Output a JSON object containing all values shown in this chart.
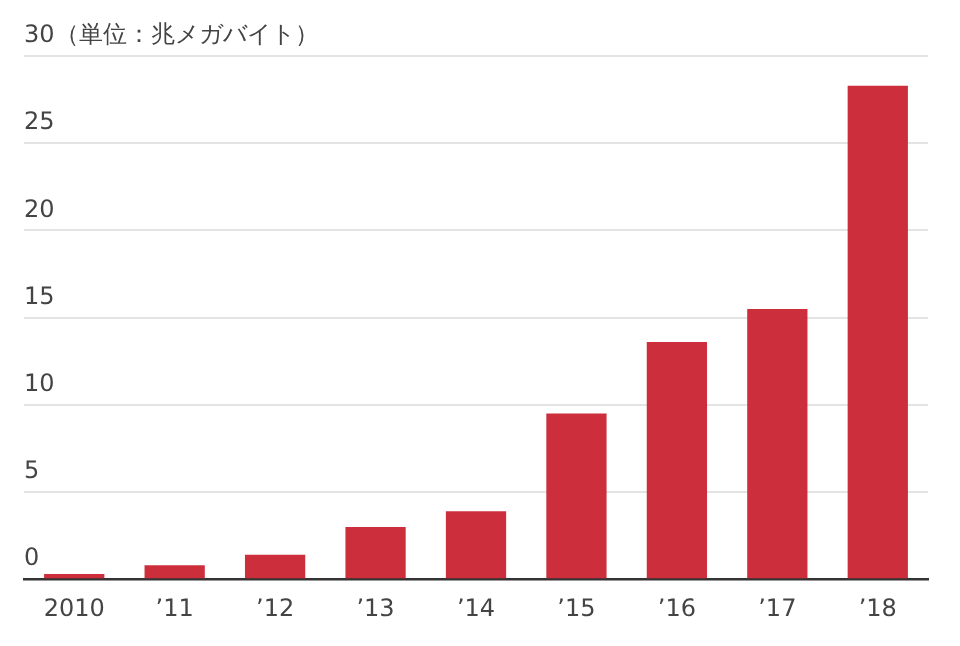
{
  "chart_data": {
    "type": "bar",
    "categories": [
      "2010",
      "’11",
      "’12",
      "’13",
      "’14",
      "’15",
      "’16",
      "’17",
      "’18"
    ],
    "values": [
      0.3,
      0.8,
      1.4,
      3.0,
      3.9,
      9.5,
      13.6,
      15.5,
      28.3
    ],
    "color": "#cc2f3b",
    "ylim": [
      0,
      30
    ],
    "yticks": [
      0,
      5,
      10,
      15,
      20,
      25,
      {
        "value": 30,
        "label": "30（単位：兆メガバイト）"
      }
    ],
    "grid": "y",
    "legend": false
  }
}
